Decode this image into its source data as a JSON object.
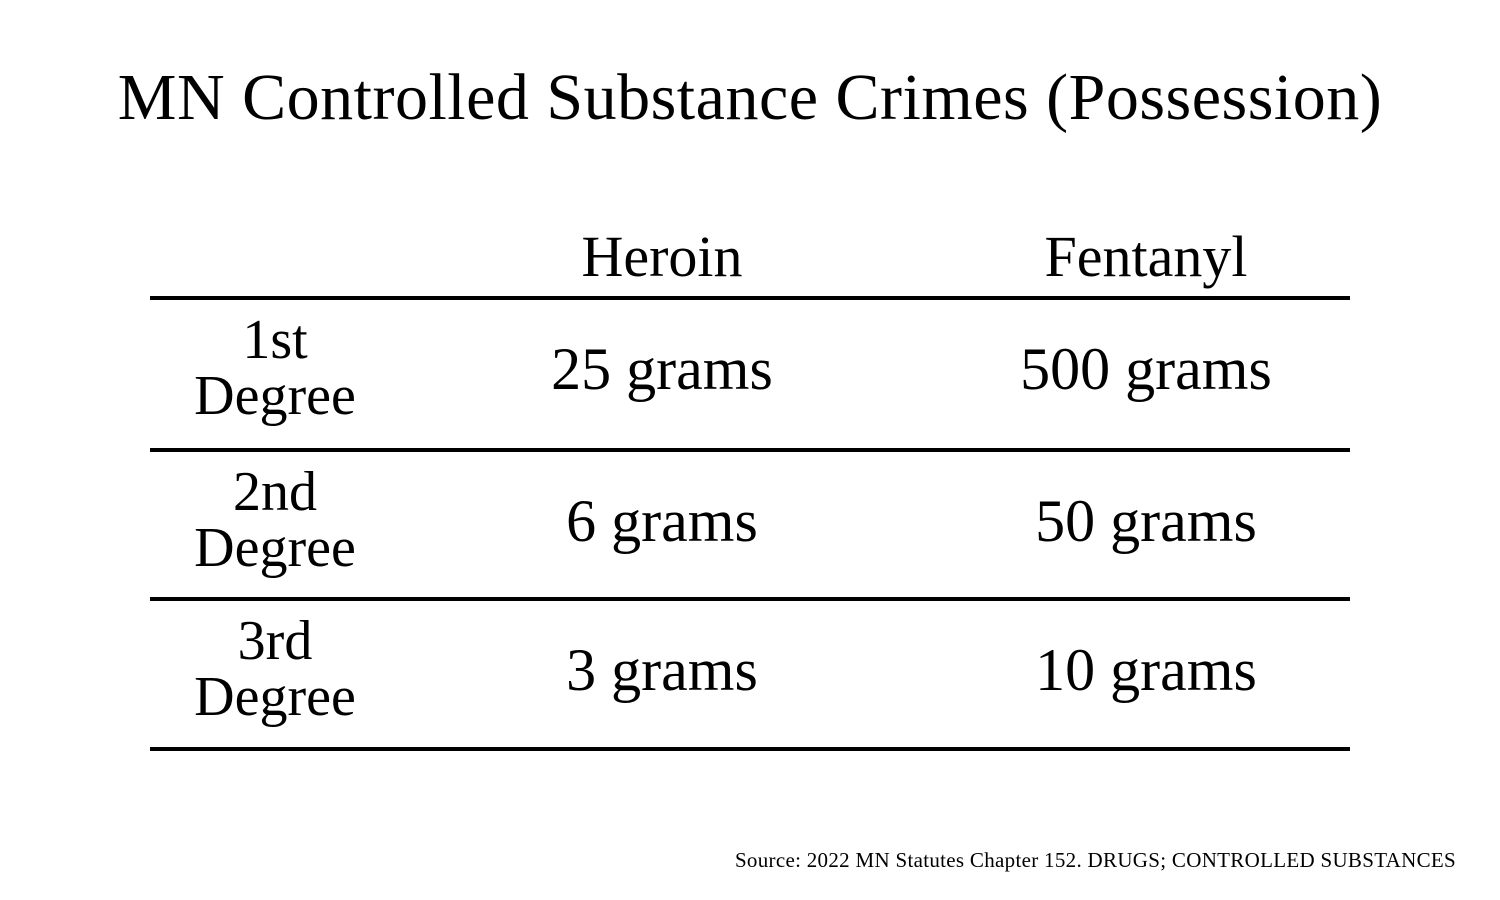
{
  "title": "MN Controlled Substance Crimes (Possession)",
  "table": {
    "columns": [
      "Heroin",
      "Fentanyl"
    ],
    "rows": [
      {
        "ordinal": "1st",
        "label": "Degree",
        "heroin": "25 grams",
        "fentanyl": "500 grams"
      },
      {
        "ordinal": "2nd",
        "label": "Degree",
        "heroin": "6 grams",
        "fentanyl": "50 grams"
      },
      {
        "ordinal": "3rd",
        "label": "Degree",
        "heroin": "3 grams",
        "fentanyl": "10 grams"
      }
    ]
  },
  "source": "Source: 2022 MN Statutes Chapter 152. DRUGS; CONTROLLED SUBSTANCES",
  "colors": {
    "text": "#000000",
    "background": "#ffffff",
    "rules": "#000000"
  }
}
